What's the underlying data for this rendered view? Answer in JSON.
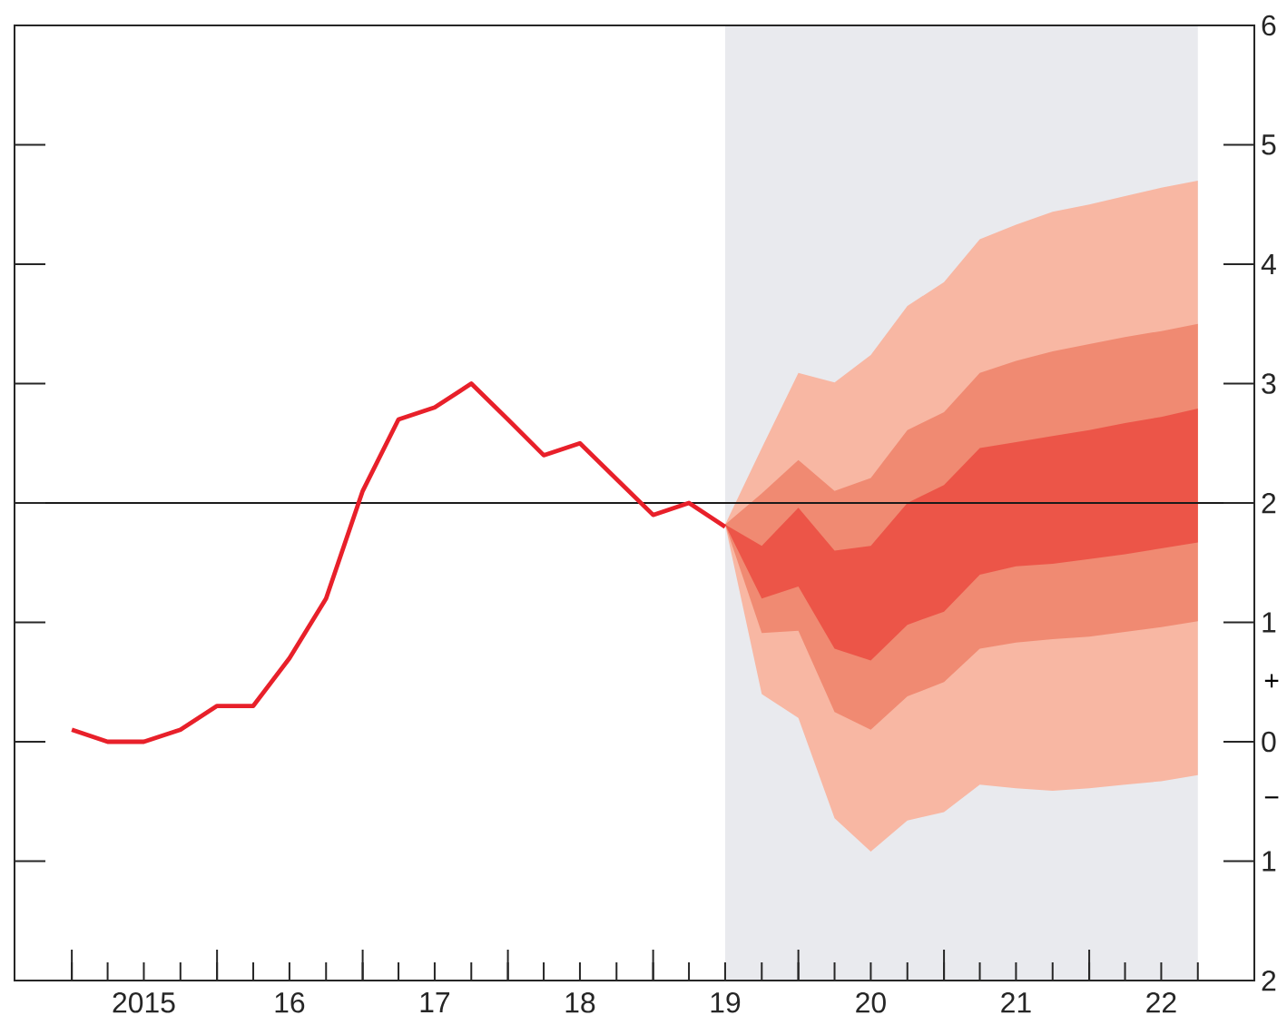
{
  "chart_data": {
    "type": "line",
    "xlim": [
      "2014-08-10",
      "2023-02-20"
    ],
    "ylim": [
      -2,
      6
    ],
    "xticks": [
      {
        "value": "2015-01",
        "label": null
      },
      {
        "value": "2015-04",
        "label": null
      },
      {
        "value": "2015-07",
        "label": "2015"
      },
      {
        "value": "2015-10",
        "label": null
      },
      {
        "value": "2016-01",
        "label": null
      },
      {
        "value": "2016-04",
        "label": null
      },
      {
        "value": "2016-07",
        "label": "16"
      },
      {
        "value": "2016-10",
        "label": null
      },
      {
        "value": "2017-01",
        "label": null
      },
      {
        "value": "2017-04",
        "label": null
      },
      {
        "value": "2017-07",
        "label": "17"
      },
      {
        "value": "2017-10",
        "label": null
      },
      {
        "value": "2018-01",
        "label": null
      },
      {
        "value": "2018-04",
        "label": null
      },
      {
        "value": "2018-07",
        "label": "18"
      },
      {
        "value": "2018-10",
        "label": null
      },
      {
        "value": "2019-01",
        "label": null
      },
      {
        "value": "2019-04",
        "label": null
      },
      {
        "value": "2019-07",
        "label": "19"
      },
      {
        "value": "2019-10",
        "label": null
      },
      {
        "value": "2020-01",
        "label": null
      },
      {
        "value": "2020-04",
        "label": null
      },
      {
        "value": "2020-07",
        "label": "20"
      },
      {
        "value": "2020-10",
        "label": null
      },
      {
        "value": "2021-01",
        "label": null
      },
      {
        "value": "2021-04",
        "label": null
      },
      {
        "value": "2021-07",
        "label": "21"
      },
      {
        "value": "2021-10",
        "label": null
      },
      {
        "value": "2022-01",
        "label": null
      },
      {
        "value": "2022-04",
        "label": null
      },
      {
        "value": "2022-07",
        "label": "22"
      },
      {
        "value": "2022-10",
        "label": null
      }
    ],
    "yticks": [
      {
        "value": -2,
        "label": "2"
      },
      {
        "value": -1,
        "label": "1"
      },
      0,
      1,
      2,
      3,
      4,
      5,
      6
    ],
    "bands": [
      {
        "axis": "x",
        "from": "2019-07",
        "to": "2022-10",
        "color": "#e9eaee"
      }
    ],
    "ref_lines": [
      {
        "axis": "y",
        "value": 2,
        "color": "#1a1a1a"
      }
    ],
    "series": [
      {
        "type": "area",
        "color": "#f8b7a3",
        "x": [
          "2019-07",
          "2019-10",
          "2020-01",
          "2020-04",
          "2020-07",
          "2020-10",
          "2021-01",
          "2021-04",
          "2021-07",
          "2021-10",
          "2022-01",
          "2022-04",
          "2022-07",
          "2022-10"
        ],
        "values": [
          null,
          null,
          null,
          null,
          null,
          null,
          null,
          null,
          null,
          null,
          null,
          null,
          null,
          null
        ],
        "upper": [
          1.82,
          2.46,
          3.09,
          3.01,
          3.24,
          3.65,
          3.85,
          4.21,
          4.33,
          4.44,
          4.5,
          4.57,
          4.64,
          4.7
        ],
        "lower": [
          1.82,
          0.4,
          0.2,
          -0.64,
          -0.92,
          -0.66,
          -0.59,
          -0.36,
          -0.39,
          -0.41,
          -0.39,
          -0.36,
          -0.33,
          -0.28
        ]
      },
      {
        "type": "area",
        "color": "#f08a72",
        "x": [
          "2019-07",
          "2019-10",
          "2020-01",
          "2020-04",
          "2020-07",
          "2020-10",
          "2021-01",
          "2021-04",
          "2021-07",
          "2021-10",
          "2022-01",
          "2022-04",
          "2022-07",
          "2022-10"
        ],
        "values": [
          null,
          null,
          null,
          null,
          null,
          null,
          null,
          null,
          null,
          null,
          null,
          null,
          null,
          null
        ],
        "upper": [
          1.82,
          2.08,
          2.36,
          2.1,
          2.21,
          2.61,
          2.76,
          3.09,
          3.19,
          3.27,
          3.33,
          3.39,
          3.44,
          3.5
        ],
        "lower": [
          1.82,
          0.91,
          0.93,
          0.25,
          0.1,
          0.38,
          0.5,
          0.78,
          0.83,
          0.86,
          0.88,
          0.92,
          0.96,
          1.01
        ]
      },
      {
        "type": "area",
        "color": "#ec5548",
        "x": [
          "2019-07",
          "2019-10",
          "2020-01",
          "2020-04",
          "2020-07",
          "2020-10",
          "2021-01",
          "2021-04",
          "2021-07",
          "2021-10",
          "2022-01",
          "2022-04",
          "2022-07",
          "2022-10"
        ],
        "values": [
          null,
          null,
          null,
          null,
          null,
          null,
          null,
          null,
          null,
          null,
          null,
          null,
          null,
          null
        ],
        "upper": [
          1.82,
          1.64,
          1.96,
          1.6,
          1.64,
          2.0,
          2.15,
          2.46,
          2.51,
          2.56,
          2.61,
          2.67,
          2.72,
          2.79
        ],
        "lower": [
          1.82,
          1.2,
          1.3,
          0.78,
          0.68,
          0.98,
          1.09,
          1.4,
          1.47,
          1.49,
          1.53,
          1.57,
          1.62,
          1.67
        ]
      },
      {
        "color": "#e8202a",
        "x": [
          "2015-01",
          "2015-04",
          "2015-07",
          "2015-10",
          "2016-01",
          "2016-04",
          "2016-07",
          "2016-10",
          "2017-01",
          "2017-04",
          "2017-07",
          "2017-10",
          "2018-01",
          "2018-04",
          "2018-07",
          "2018-10",
          "2019-01",
          "2019-04",
          "2019-07"
        ],
        "values": [
          0.1,
          0.0,
          0.0,
          0.1,
          0.3,
          0.3,
          0.7,
          1.2,
          2.1,
          2.7,
          2.8,
          3.0,
          2.7,
          2.4,
          2.5,
          2.2,
          1.9,
          2.0,
          1.8
        ]
      }
    ],
    "annotations": [
      "+",
      "−"
    ]
  }
}
